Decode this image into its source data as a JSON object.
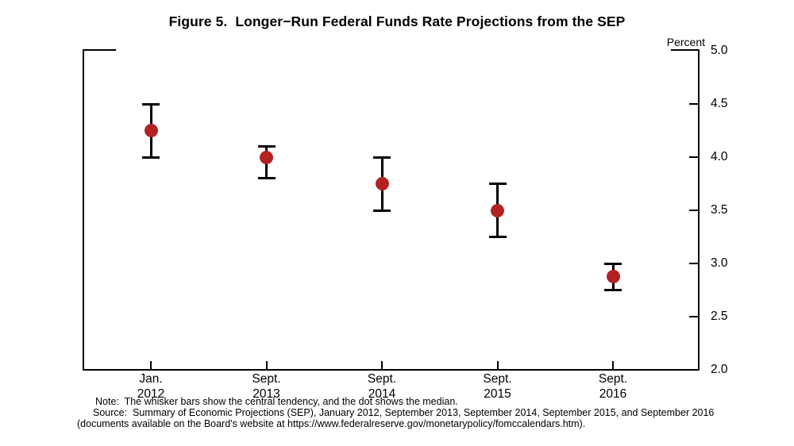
{
  "notes": {
    "note": "Note:  The whisker bars show the central tendency, and the dot shows the median.",
    "source": "Source:  Summary of Economic Projections (SEP), January 2012, September 2013, September 2014, September 2015, and September 2016",
    "source_continued": "(documents available on the Board's website at https://www.federalreserve.gov/monetarypolicy/fomccalendars.htm)."
  },
  "chart_data": {
    "type": "scatter",
    "subtype": "dot-and-whisker-error-bars",
    "title": "Figure 5.  Longer−Run Federal Funds Rate Projections from the SEP",
    "ylabel": "Percent",
    "xlabel": "",
    "ylim": [
      2.0,
      5.0
    ],
    "y_tick_step": 0.5,
    "y_tick_labels": [
      "5.0",
      "4.5",
      "4.0",
      "3.5",
      "3.0",
      "2.5",
      "2.0"
    ],
    "grid": false,
    "legend": "none",
    "marker_color": "#B22222",
    "axis_color": "#000000",
    "categories": [
      "Jan. 2012",
      "Sept. 2013",
      "Sept. 2014",
      "Sept. 2015",
      "Sept. 2016"
    ],
    "points": [
      {
        "month": "Jan.",
        "year": "2012",
        "median": 4.25,
        "ct_low": 4.0,
        "ct_high": 4.5
      },
      {
        "month": "Sept.",
        "year": "2013",
        "median": 4.0,
        "ct_low": 3.8,
        "ct_high": 4.1
      },
      {
        "month": "Sept.",
        "year": "2014",
        "median": 3.75,
        "ct_low": 3.5,
        "ct_high": 4.0
      },
      {
        "month": "Sept.",
        "year": "2015",
        "median": 3.5,
        "ct_low": 3.25,
        "ct_high": 3.75
      },
      {
        "month": "Sept.",
        "year": "2016",
        "median": 2.875,
        "ct_low": 2.75,
        "ct_high": 3.0
      }
    ]
  }
}
